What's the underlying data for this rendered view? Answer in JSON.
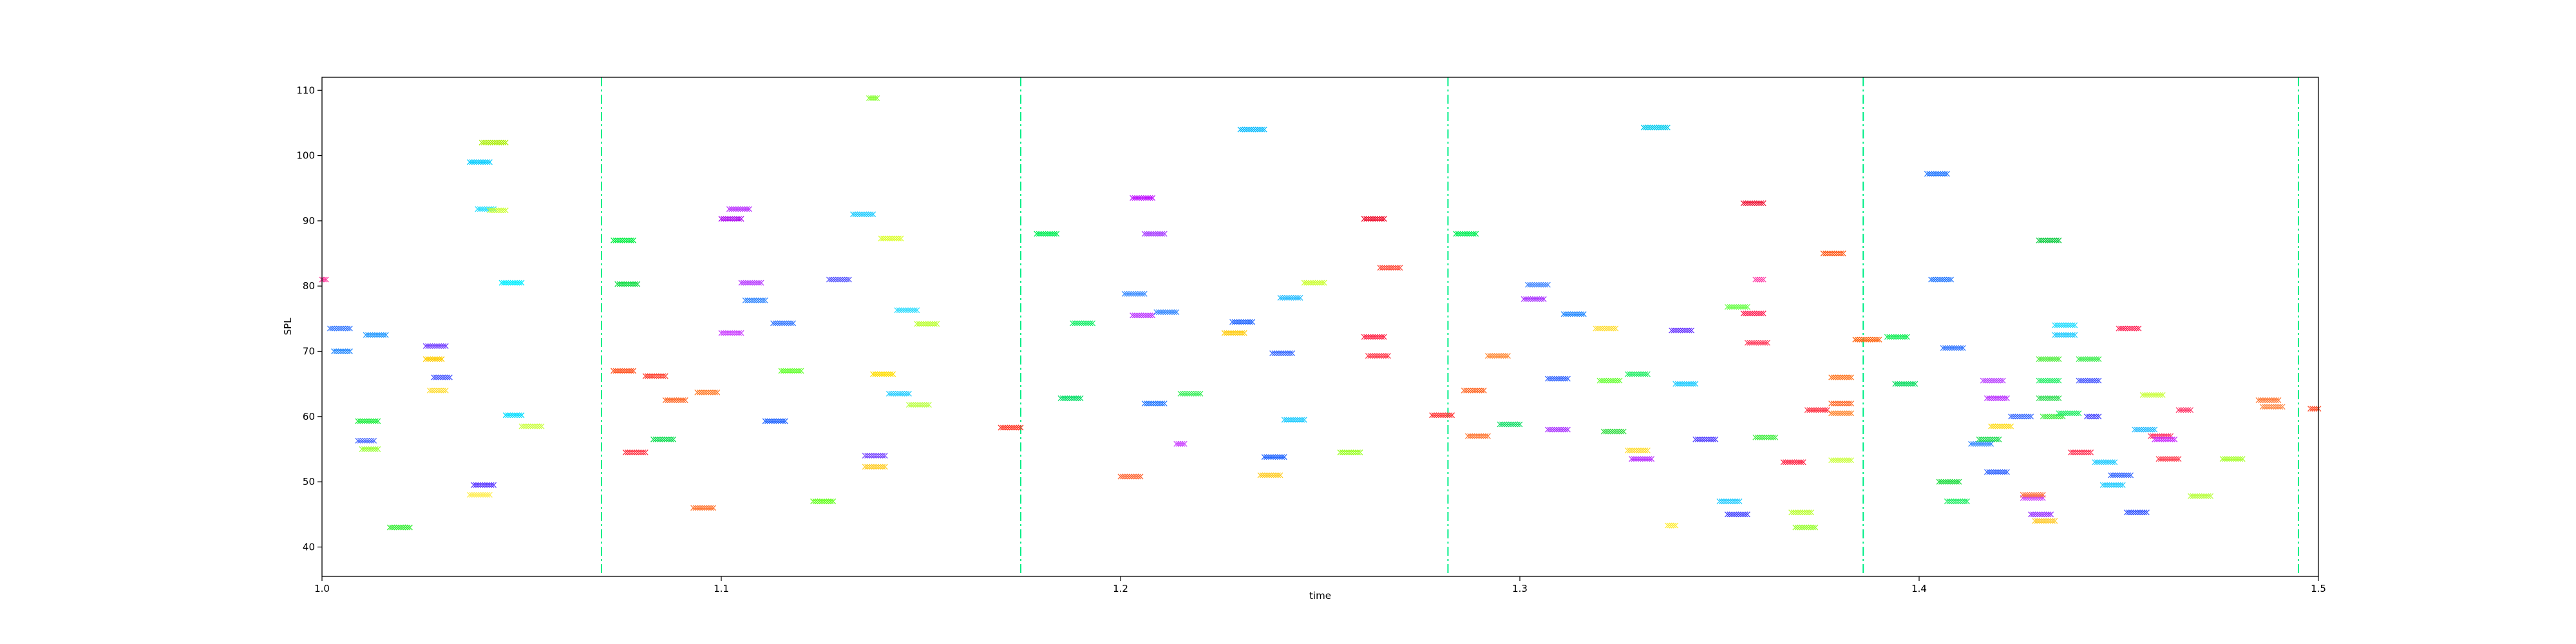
{
  "chart_data": {
    "type": "scatter",
    "title": "",
    "xlabel": "time",
    "ylabel": "SPL",
    "xlim": [
      1.0,
      1.5
    ],
    "ylim": [
      35.5,
      112
    ],
    "xticks": [
      1.0,
      1.1,
      1.2,
      1.3,
      1.4,
      1.5
    ],
    "xtick_labels": [
      "1.0",
      "1.1",
      "1.2",
      "1.3",
      "1.4",
      "1.5"
    ],
    "yticks": [
      40,
      50,
      60,
      70,
      80,
      90,
      100,
      110
    ],
    "ytick_labels": [
      "40",
      "50",
      "60",
      "70",
      "80",
      "90",
      "100",
      "110"
    ],
    "marker": "x",
    "vlines": {
      "color": "#00ee88",
      "style": "dashdot",
      "x": [
        1.07,
        1.175,
        1.282,
        1.386,
        1.495
      ]
    },
    "segments": [
      {
        "x0": 1.0,
        "x1": 1.001,
        "y": 81.0,
        "color": "#ff3399"
      },
      {
        "x0": 1.002,
        "x1": 1.007,
        "y": 73.5,
        "color": "#3377ff"
      },
      {
        "x0": 1.003,
        "x1": 1.007,
        "y": 70.0,
        "color": "#2288ff"
      },
      {
        "x0": 1.009,
        "x1": 1.014,
        "y": 59.3,
        "color": "#22ee44"
      },
      {
        "x0": 1.009,
        "x1": 1.013,
        "y": 56.3,
        "color": "#4466ff"
      },
      {
        "x0": 1.01,
        "x1": 1.014,
        "y": 55.0,
        "color": "#99ff33"
      },
      {
        "x0": 1.011,
        "x1": 1.016,
        "y": 72.5,
        "color": "#2299ff"
      },
      {
        "x0": 1.017,
        "x1": 1.022,
        "y": 43.0,
        "color": "#33ee33"
      },
      {
        "x0": 1.026,
        "x1": 1.031,
        "y": 70.8,
        "color": "#7744ff"
      },
      {
        "x0": 1.026,
        "x1": 1.03,
        "y": 68.8,
        "color": "#ffcc00"
      },
      {
        "x0": 1.027,
        "x1": 1.031,
        "y": 64.0,
        "color": "#ffdd33"
      },
      {
        "x0": 1.028,
        "x1": 1.032,
        "y": 66.0,
        "color": "#4455ff"
      },
      {
        "x0": 1.037,
        "x1": 1.042,
        "y": 99.0,
        "color": "#00ccff"
      },
      {
        "x0": 1.038,
        "x1": 1.043,
        "y": 49.5,
        "color": "#5533ff"
      },
      {
        "x0": 1.037,
        "x1": 1.042,
        "y": 48.0,
        "color": "#ffee55"
      },
      {
        "x0": 1.039,
        "x1": 1.043,
        "y": 91.8,
        "color": "#22ddff"
      },
      {
        "x0": 1.04,
        "x1": 1.046,
        "y": 102.0,
        "color": "#aaee00"
      },
      {
        "x0": 1.042,
        "x1": 1.046,
        "y": 91.6,
        "color": "#ccff33"
      },
      {
        "x0": 1.045,
        "x1": 1.05,
        "y": 80.5,
        "color": "#00eeff"
      },
      {
        "x0": 1.046,
        "x1": 1.05,
        "y": 60.2,
        "color": "#00ddff"
      },
      {
        "x0": 1.05,
        "x1": 1.055,
        "y": 58.5,
        "color": "#ccff44"
      },
      {
        "x0": 1.073,
        "x1": 1.078,
        "y": 87.0,
        "color": "#00ee44"
      },
      {
        "x0": 1.073,
        "x1": 1.078,
        "y": 67.0,
        "color": "#ff5522"
      },
      {
        "x0": 1.074,
        "x1": 1.079,
        "y": 80.3,
        "color": "#11dd44"
      },
      {
        "x0": 1.076,
        "x1": 1.081,
        "y": 54.5,
        "color": "#ff3344"
      },
      {
        "x0": 1.081,
        "x1": 1.086,
        "y": 66.2,
        "color": "#ff4433"
      },
      {
        "x0": 1.083,
        "x1": 1.088,
        "y": 56.5,
        "color": "#11dd55"
      },
      {
        "x0": 1.086,
        "x1": 1.091,
        "y": 62.5,
        "color": "#ff6622"
      },
      {
        "x0": 1.093,
        "x1": 1.098,
        "y": 46.0,
        "color": "#ff7733"
      },
      {
        "x0": 1.094,
        "x1": 1.099,
        "y": 63.7,
        "color": "#ff7722"
      },
      {
        "x0": 1.1,
        "x1": 1.105,
        "y": 90.3,
        "color": "#aa00ee"
      },
      {
        "x0": 1.1,
        "x1": 1.105,
        "y": 72.8,
        "color": "#cc44ff"
      },
      {
        "x0": 1.102,
        "x1": 1.107,
        "y": 91.8,
        "color": "#bb33ff"
      },
      {
        "x0": 1.105,
        "x1": 1.11,
        "y": 80.5,
        "color": "#bb44ff"
      },
      {
        "x0": 1.106,
        "x1": 1.111,
        "y": 77.8,
        "color": "#3388ff"
      },
      {
        "x0": 1.111,
        "x1": 1.116,
        "y": 59.3,
        "color": "#2266ff"
      },
      {
        "x0": 1.113,
        "x1": 1.118,
        "y": 74.3,
        "color": "#3377ff"
      },
      {
        "x0": 1.115,
        "x1": 1.12,
        "y": 67.0,
        "color": "#66ff33"
      },
      {
        "x0": 1.123,
        "x1": 1.128,
        "y": 47.0,
        "color": "#66ff22"
      },
      {
        "x0": 1.127,
        "x1": 1.132,
        "y": 81.0,
        "color": "#5555ff"
      },
      {
        "x0": 1.133,
        "x1": 1.138,
        "y": 91.0,
        "color": "#22ccff"
      },
      {
        "x0": 1.137,
        "x1": 1.139,
        "y": 108.8,
        "color": "#88ff33"
      },
      {
        "x0": 1.136,
        "x1": 1.141,
        "y": 54.0,
        "color": "#7744ff"
      },
      {
        "x0": 1.136,
        "x1": 1.141,
        "y": 52.3,
        "color": "#ffcc22"
      },
      {
        "x0": 1.138,
        "x1": 1.143,
        "y": 66.5,
        "color": "#ffdd00"
      },
      {
        "x0": 1.14,
        "x1": 1.145,
        "y": 87.3,
        "color": "#ddff33"
      },
      {
        "x0": 1.142,
        "x1": 1.147,
        "y": 63.5,
        "color": "#22ccff"
      },
      {
        "x0": 1.144,
        "x1": 1.149,
        "y": 76.3,
        "color": "#33ddff"
      },
      {
        "x0": 1.147,
        "x1": 1.152,
        "y": 61.8,
        "color": "#bbff44"
      },
      {
        "x0": 1.149,
        "x1": 1.154,
        "y": 74.2,
        "color": "#bbff33"
      },
      {
        "x0": 1.17,
        "x1": 1.175,
        "y": 58.3,
        "color": "#ff3322"
      },
      {
        "x0": 1.179,
        "x1": 1.184,
        "y": 88.0,
        "color": "#00ee55"
      },
      {
        "x0": 1.185,
        "x1": 1.19,
        "y": 62.8,
        "color": "#00dd66"
      },
      {
        "x0": 1.188,
        "x1": 1.193,
        "y": 74.3,
        "color": "#11ee66"
      },
      {
        "x0": 1.2,
        "x1": 1.205,
        "y": 50.8,
        "color": "#ff6633"
      },
      {
        "x0": 1.201,
        "x1": 1.206,
        "y": 78.8,
        "color": "#3388ff"
      },
      {
        "x0": 1.203,
        "x1": 1.208,
        "y": 93.5,
        "color": "#bb00ff"
      },
      {
        "x0": 1.203,
        "x1": 1.208,
        "y": 75.5,
        "color": "#bb33ff"
      },
      {
        "x0": 1.206,
        "x1": 1.211,
        "y": 88.0,
        "color": "#aa44ff"
      },
      {
        "x0": 1.206,
        "x1": 1.211,
        "y": 62.0,
        "color": "#2277ff"
      },
      {
        "x0": 1.209,
        "x1": 1.214,
        "y": 76.0,
        "color": "#3388ff"
      },
      {
        "x0": 1.214,
        "x1": 1.216,
        "y": 55.8,
        "color": "#cc44ff"
      },
      {
        "x0": 1.215,
        "x1": 1.22,
        "y": 63.5,
        "color": "#33ee55"
      },
      {
        "x0": 1.226,
        "x1": 1.231,
        "y": 72.8,
        "color": "#ffcc11"
      },
      {
        "x0": 1.228,
        "x1": 1.233,
        "y": 74.5,
        "color": "#2266ff"
      },
      {
        "x0": 1.23,
        "x1": 1.236,
        "y": 104.0,
        "color": "#00bbff"
      },
      {
        "x0": 1.235,
        "x1": 1.24,
        "y": 51.0,
        "color": "#ffcc22"
      },
      {
        "x0": 1.236,
        "x1": 1.241,
        "y": 53.8,
        "color": "#2266ff"
      },
      {
        "x0": 1.238,
        "x1": 1.243,
        "y": 69.7,
        "color": "#3366ff"
      },
      {
        "x0": 1.24,
        "x1": 1.245,
        "y": 78.2,
        "color": "#22bbff"
      },
      {
        "x0": 1.241,
        "x1": 1.246,
        "y": 59.5,
        "color": "#22ccff"
      },
      {
        "x0": 1.246,
        "x1": 1.251,
        "y": 80.5,
        "color": "#ccff33"
      },
      {
        "x0": 1.255,
        "x1": 1.26,
        "y": 54.5,
        "color": "#99ff22"
      },
      {
        "x0": 1.261,
        "x1": 1.266,
        "y": 90.3,
        "color": "#ee0022"
      },
      {
        "x0": 1.261,
        "x1": 1.266,
        "y": 72.2,
        "color": "#ff2244"
      },
      {
        "x0": 1.262,
        "x1": 1.267,
        "y": 69.3,
        "color": "#ff3344"
      },
      {
        "x0": 1.265,
        "x1": 1.27,
        "y": 82.8,
        "color": "#ff4433"
      },
      {
        "x0": 1.278,
        "x1": 1.283,
        "y": 60.2,
        "color": "#ff3333"
      },
      {
        "x0": 1.284,
        "x1": 1.289,
        "y": 88.0,
        "color": "#00ee55"
      },
      {
        "x0": 1.286,
        "x1": 1.291,
        "y": 64.0,
        "color": "#ff6622"
      },
      {
        "x0": 1.287,
        "x1": 1.292,
        "y": 57.0,
        "color": "#ff7733"
      },
      {
        "x0": 1.292,
        "x1": 1.297,
        "y": 69.3,
        "color": "#ff8833"
      },
      {
        "x0": 1.295,
        "x1": 1.3,
        "y": 58.8,
        "color": "#11dd66"
      },
      {
        "x0": 1.301,
        "x1": 1.306,
        "y": 78.0,
        "color": "#aa33ff"
      },
      {
        "x0": 1.302,
        "x1": 1.307,
        "y": 80.2,
        "color": "#4488ff"
      },
      {
        "x0": 1.307,
        "x1": 1.312,
        "y": 65.8,
        "color": "#3366ff"
      },
      {
        "x0": 1.307,
        "x1": 1.312,
        "y": 58.0,
        "color": "#aa33ff"
      },
      {
        "x0": 1.311,
        "x1": 1.316,
        "y": 75.7,
        "color": "#2288ff"
      },
      {
        "x0": 1.319,
        "x1": 1.324,
        "y": 73.5,
        "color": "#ffdd33"
      },
      {
        "x0": 1.32,
        "x1": 1.325,
        "y": 65.5,
        "color": "#66ff33"
      },
      {
        "x0": 1.321,
        "x1": 1.326,
        "y": 57.7,
        "color": "#33dd44"
      },
      {
        "x0": 1.327,
        "x1": 1.332,
        "y": 66.5,
        "color": "#22ee66"
      },
      {
        "x0": 1.327,
        "x1": 1.332,
        "y": 54.8,
        "color": "#ffdd33"
      },
      {
        "x0": 1.328,
        "x1": 1.333,
        "y": 53.5,
        "color": "#bb33ff"
      },
      {
        "x0": 1.331,
        "x1": 1.337,
        "y": 104.3,
        "color": "#00ccee"
      },
      {
        "x0": 1.337,
        "x1": 1.339,
        "y": 43.3,
        "color": "#ffee44"
      },
      {
        "x0": 1.338,
        "x1": 1.343,
        "y": 73.2,
        "color": "#6633ff"
      },
      {
        "x0": 1.339,
        "x1": 1.344,
        "y": 65.0,
        "color": "#22ccff"
      },
      {
        "x0": 1.344,
        "x1": 1.349,
        "y": 56.5,
        "color": "#5544ff"
      },
      {
        "x0": 1.35,
        "x1": 1.355,
        "y": 47.0,
        "color": "#22ccff"
      },
      {
        "x0": 1.352,
        "x1": 1.357,
        "y": 76.8,
        "color": "#66ff44"
      },
      {
        "x0": 1.352,
        "x1": 1.357,
        "y": 45.0,
        "color": "#4444ff"
      },
      {
        "x0": 1.356,
        "x1": 1.361,
        "y": 92.7,
        "color": "#ee1133"
      },
      {
        "x0": 1.356,
        "x1": 1.361,
        "y": 75.8,
        "color": "#ff2255"
      },
      {
        "x0": 1.357,
        "x1": 1.362,
        "y": 71.3,
        "color": "#ff3355"
      },
      {
        "x0": 1.359,
        "x1": 1.361,
        "y": 81.0,
        "color": "#ff44aa"
      },
      {
        "x0": 1.359,
        "x1": 1.364,
        "y": 56.8,
        "color": "#44ee44"
      },
      {
        "x0": 1.366,
        "x1": 1.371,
        "y": 53.0,
        "color": "#ff2244"
      },
      {
        "x0": 1.368,
        "x1": 1.373,
        "y": 45.3,
        "color": "#bbff33"
      },
      {
        "x0": 1.369,
        "x1": 1.374,
        "y": 43.0,
        "color": "#99ff33"
      },
      {
        "x0": 1.372,
        "x1": 1.377,
        "y": 61.0,
        "color": "#ff3344"
      },
      {
        "x0": 1.376,
        "x1": 1.381,
        "y": 85.0,
        "color": "#ff5511"
      },
      {
        "x0": 1.378,
        "x1": 1.383,
        "y": 66.0,
        "color": "#ff7722"
      },
      {
        "x0": 1.378,
        "x1": 1.383,
        "y": 62.0,
        "color": "#ff6622"
      },
      {
        "x0": 1.378,
        "x1": 1.383,
        "y": 60.5,
        "color": "#ff8833"
      },
      {
        "x0": 1.378,
        "x1": 1.383,
        "y": 53.3,
        "color": "#ccff44"
      },
      {
        "x0": 1.384,
        "x1": 1.39,
        "y": 71.8,
        "color": "#ff6611"
      },
      {
        "x0": 1.392,
        "x1": 1.397,
        "y": 72.2,
        "color": "#11ee55"
      },
      {
        "x0": 1.394,
        "x1": 1.399,
        "y": 65.0,
        "color": "#11dd66"
      },
      {
        "x0": 1.402,
        "x1": 1.407,
        "y": 97.2,
        "color": "#2277ff"
      },
      {
        "x0": 1.403,
        "x1": 1.408,
        "y": 81.0,
        "color": "#2277ff"
      },
      {
        "x0": 1.405,
        "x1": 1.41,
        "y": 50.0,
        "color": "#22dd44"
      },
      {
        "x0": 1.406,
        "x1": 1.411,
        "y": 70.5,
        "color": "#3377ff"
      },
      {
        "x0": 1.407,
        "x1": 1.412,
        "y": 47.0,
        "color": "#22ee66"
      },
      {
        "x0": 1.413,
        "x1": 1.418,
        "y": 55.8,
        "color": "#3388ff"
      },
      {
        "x0": 1.415,
        "x1": 1.42,
        "y": 56.5,
        "color": "#22dd55"
      },
      {
        "x0": 1.416,
        "x1": 1.421,
        "y": 65.5,
        "color": "#bb44ff"
      },
      {
        "x0": 1.417,
        "x1": 1.422,
        "y": 62.8,
        "color": "#bb33ff"
      },
      {
        "x0": 1.417,
        "x1": 1.422,
        "y": 51.5,
        "color": "#3366ff"
      },
      {
        "x0": 1.418,
        "x1": 1.423,
        "y": 58.5,
        "color": "#ffdd22"
      },
      {
        "x0": 1.423,
        "x1": 1.428,
        "y": 60.0,
        "color": "#3366ff"
      },
      {
        "x0": 1.426,
        "x1": 1.431,
        "y": 47.5,
        "color": "#cc44ff"
      },
      {
        "x0": 1.426,
        "x1": 1.431,
        "y": 48.0,
        "color": "#ff7744"
      },
      {
        "x0": 1.428,
        "x1": 1.433,
        "y": 45.0,
        "color": "#9933ff"
      },
      {
        "x0": 1.429,
        "x1": 1.434,
        "y": 44.0,
        "color": "#ffcc33"
      },
      {
        "x0": 1.43,
        "x1": 1.435,
        "y": 87.0,
        "color": "#11cc44"
      },
      {
        "x0": 1.43,
        "x1": 1.435,
        "y": 68.8,
        "color": "#55ee44"
      },
      {
        "x0": 1.43,
        "x1": 1.435,
        "y": 65.5,
        "color": "#22ee66"
      },
      {
        "x0": 1.43,
        "x1": 1.435,
        "y": 62.8,
        "color": "#33dd55"
      },
      {
        "x0": 1.431,
        "x1": 1.436,
        "y": 60.0,
        "color": "#44ee44"
      },
      {
        "x0": 1.434,
        "x1": 1.439,
        "y": 74.0,
        "color": "#22ddff"
      },
      {
        "x0": 1.434,
        "x1": 1.439,
        "y": 72.5,
        "color": "#22ccff"
      },
      {
        "x0": 1.435,
        "x1": 1.44,
        "y": 60.5,
        "color": "#22ee66"
      },
      {
        "x0": 1.438,
        "x1": 1.443,
        "y": 54.5,
        "color": "#ff3355"
      },
      {
        "x0": 1.44,
        "x1": 1.445,
        "y": 68.8,
        "color": "#44ee55"
      },
      {
        "x0": 1.44,
        "x1": 1.445,
        "y": 65.5,
        "color": "#4455ff"
      },
      {
        "x0": 1.442,
        "x1": 1.445,
        "y": 60.0,
        "color": "#4444ff"
      },
      {
        "x0": 1.444,
        "x1": 1.449,
        "y": 53.0,
        "color": "#22ccff"
      },
      {
        "x0": 1.446,
        "x1": 1.451,
        "y": 49.5,
        "color": "#22ccff"
      },
      {
        "x0": 1.448,
        "x1": 1.453,
        "y": 51.0,
        "color": "#3366ff"
      },
      {
        "x0": 1.45,
        "x1": 1.455,
        "y": 73.5,
        "color": "#ff2255"
      },
      {
        "x0": 1.452,
        "x1": 1.457,
        "y": 45.3,
        "color": "#3355ff"
      },
      {
        "x0": 1.454,
        "x1": 1.459,
        "y": 58.0,
        "color": "#22bbff"
      },
      {
        "x0": 1.456,
        "x1": 1.461,
        "y": 63.3,
        "color": "#ccff44"
      },
      {
        "x0": 1.458,
        "x1": 1.463,
        "y": 57.0,
        "color": "#ff3366"
      },
      {
        "x0": 1.459,
        "x1": 1.464,
        "y": 56.5,
        "color": "#cc33ff"
      },
      {
        "x0": 1.46,
        "x1": 1.465,
        "y": 53.5,
        "color": "#ff4455"
      },
      {
        "x0": 1.465,
        "x1": 1.468,
        "y": 61.0,
        "color": "#ff3366"
      },
      {
        "x0": 1.468,
        "x1": 1.473,
        "y": 47.8,
        "color": "#bbff44"
      },
      {
        "x0": 1.476,
        "x1": 1.481,
        "y": 53.5,
        "color": "#aaff33"
      },
      {
        "x0": 1.485,
        "x1": 1.49,
        "y": 62.5,
        "color": "#ff7733"
      },
      {
        "x0": 1.486,
        "x1": 1.491,
        "y": 61.5,
        "color": "#ff8844"
      },
      {
        "x0": 1.498,
        "x1": 1.5,
        "y": 61.2,
        "color": "#ff5533"
      }
    ]
  }
}
